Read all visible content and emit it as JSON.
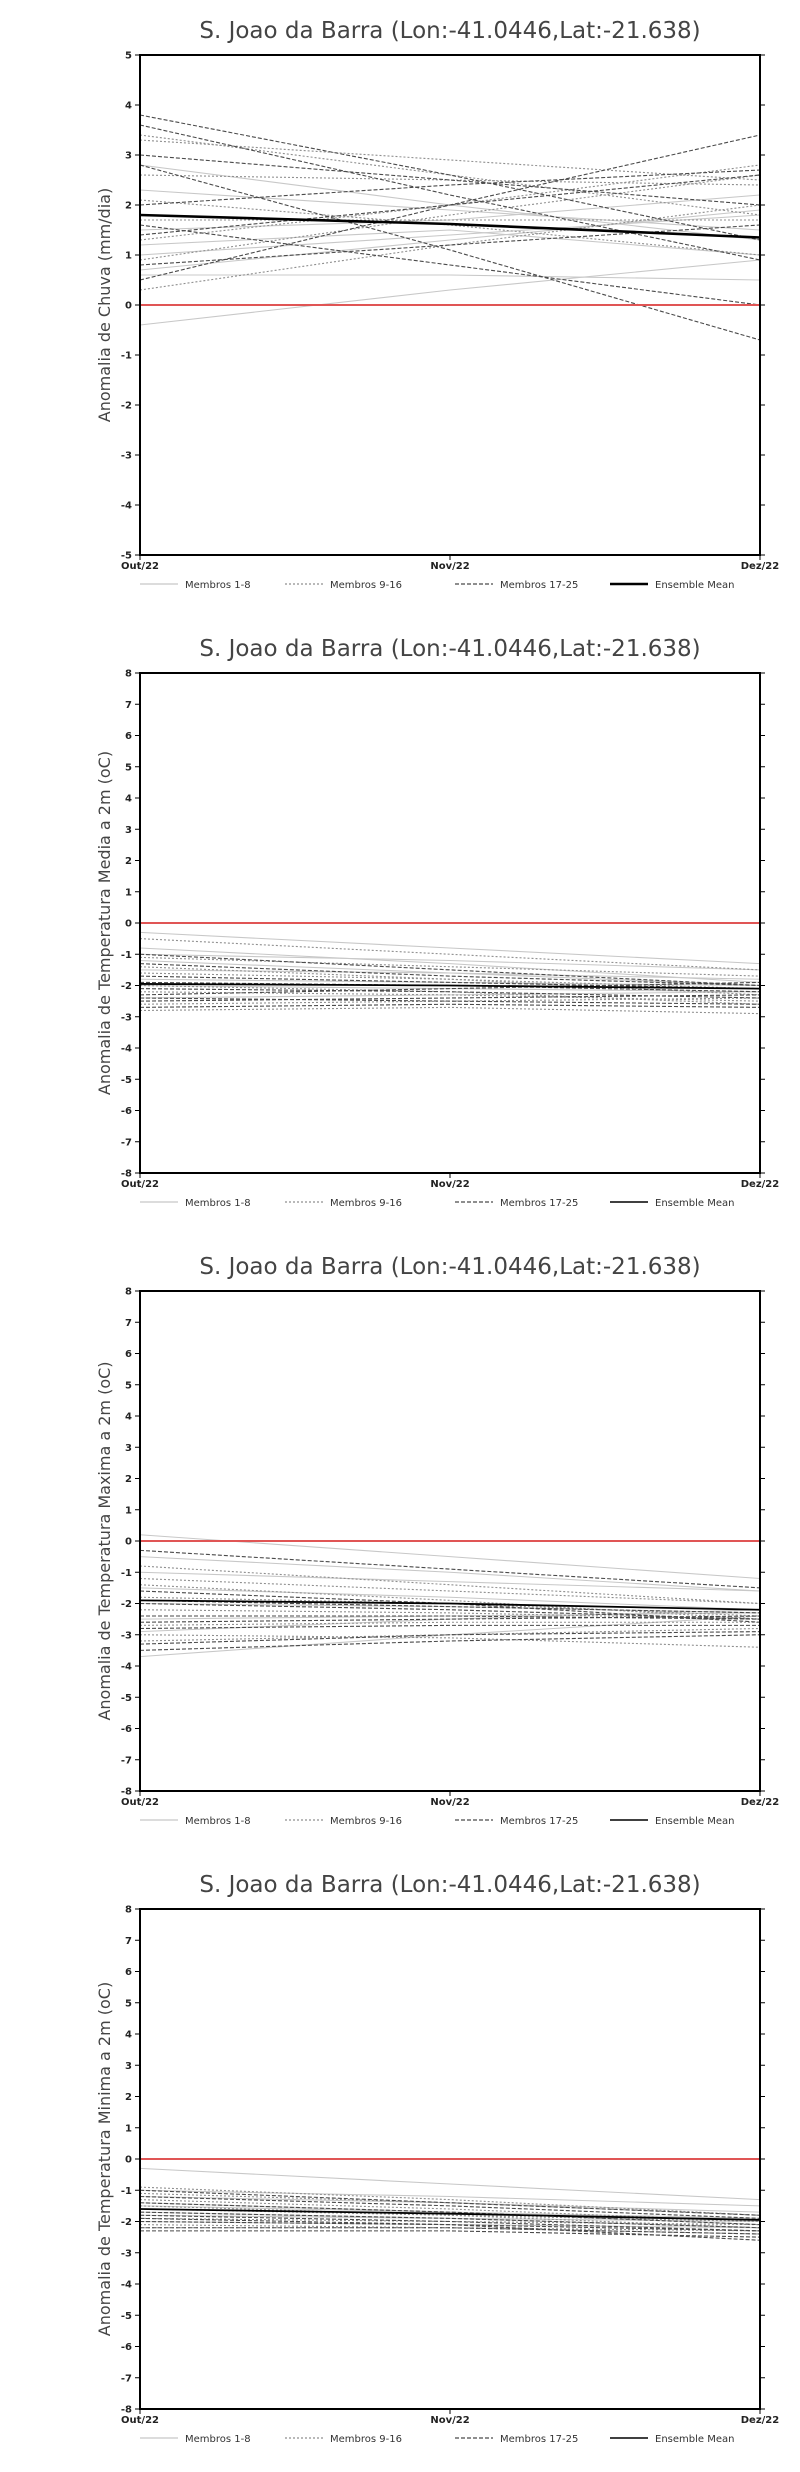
{
  "chart_data": [
    {
      "type": "line",
      "title": "S. Joao da Barra (Lon:-41.0446,Lat:-21.638)",
      "ylabel": "Anomalia de Chuva (mm/dia)",
      "x_ticks": [
        "Out/22",
        "Nov/22",
        "Dez/22"
      ],
      "ylim": [
        -5,
        5
      ],
      "y_ticks": [
        -5,
        -4,
        -3,
        -2,
        -1,
        0,
        1,
        2,
        3,
        4,
        5
      ],
      "reference_line": {
        "value": 0,
        "color": "#e05555"
      },
      "legend": [
        "Membros 1-8",
        "Membros 9-16",
        "Membros 17-25",
        "Ensemble Mean"
      ],
      "ensemble_mean": [
        1.8,
        1.62,
        1.35
      ],
      "members": [
        [
          1.5,
          1.7,
          2.2
        ],
        [
          2.3,
          1.9,
          1.5
        ],
        [
          1.0,
          1.4,
          1.8
        ],
        [
          0.7,
          1.3,
          1.9
        ],
        [
          -0.4,
          0.3,
          0.9
        ],
        [
          2.8,
          2.0,
          1.3
        ],
        [
          1.2,
          1.5,
          1.0
        ],
        [
          0.6,
          0.6,
          0.5
        ],
        [
          3.3,
          2.9,
          2.5
        ],
        [
          1.7,
          1.7,
          1.7
        ],
        [
          2.1,
          1.6,
          1.0
        ],
        [
          0.9,
          1.8,
          2.6
        ],
        [
          3.4,
          2.6,
          1.8
        ],
        [
          1.3,
          2.0,
          2.8
        ],
        [
          2.6,
          2.5,
          2.4
        ],
        [
          0.3,
          1.2,
          2.0
        ],
        [
          3.8,
          2.6,
          1.3
        ],
        [
          2.8,
          1.1,
          -0.7
        ],
        [
          1.6,
          0.8,
          0.0
        ],
        [
          3.0,
          2.5,
          2.0
        ],
        [
          0.8,
          1.2,
          1.6
        ],
        [
          2.0,
          2.4,
          2.7
        ],
        [
          1.4,
          2.0,
          2.6
        ],
        [
          0.5,
          2.0,
          3.4
        ],
        [
          3.6,
          2.2,
          0.9
        ]
      ]
    },
    {
      "type": "line",
      "title": "S. Joao da Barra (Lon:-41.0446,Lat:-21.638)",
      "ylabel": "Anomalia de Temperatura Media a 2m (oC)",
      "x_ticks": [
        "Out/22",
        "Nov/22",
        "Dez/22"
      ],
      "ylim": [
        -8,
        8
      ],
      "y_ticks": [
        -8,
        -7,
        -6,
        -5,
        -4,
        -3,
        -2,
        -1,
        0,
        1,
        2,
        3,
        4,
        5,
        6,
        7,
        8
      ],
      "reference_line": {
        "value": 0,
        "color": "#e05555"
      },
      "legend": [
        "Membros 1-8",
        "Membros 9-16",
        "Membros 17-25",
        "Ensemble Mean"
      ],
      "ensemble_mean": [
        -1.95,
        -2.0,
        -2.1
      ],
      "members": [
        [
          -0.3,
          -0.8,
          -1.3
        ],
        [
          -1.0,
          -1.2,
          -1.5
        ],
        [
          -1.5,
          -1.6,
          -1.8
        ],
        [
          -2.0,
          -2.1,
          -2.2
        ],
        [
          -2.4,
          -2.3,
          -2.2
        ],
        [
          -1.2,
          -1.6,
          -2.0
        ],
        [
          -0.8,
          -1.3,
          -1.9
        ],
        [
          -1.8,
          -1.9,
          -2.0
        ],
        [
          -2.2,
          -2.3,
          -2.5
        ],
        [
          -2.6,
          -2.5,
          -2.4
        ],
        [
          -1.1,
          -1.4,
          -1.7
        ],
        [
          -1.6,
          -1.8,
          -2.1
        ],
        [
          -2.8,
          -2.7,
          -2.9
        ],
        [
          -1.4,
          -1.8,
          -2.3
        ],
        [
          -2.0,
          -2.2,
          -2.6
        ],
        [
          -0.5,
          -1.0,
          -1.5
        ],
        [
          -2.3,
          -2.1,
          -1.9
        ],
        [
          -1.9,
          -2.0,
          -2.2
        ],
        [
          -2.5,
          -2.4,
          -2.3
        ],
        [
          -1.3,
          -1.7,
          -2.0
        ],
        [
          -2.1,
          -2.2,
          -2.4
        ],
        [
          -1.7,
          -1.9,
          -2.1
        ],
        [
          -2.7,
          -2.6,
          -2.7
        ],
        [
          -1.0,
          -1.5,
          -2.0
        ],
        [
          -2.4,
          -2.5,
          -2.6
        ]
      ]
    },
    {
      "type": "line",
      "title": "S. Joao da Barra (Lon:-41.0446,Lat:-21.638)",
      "ylabel": "Anomalia de Temperatura Maxima a 2m (oC)",
      "x_ticks": [
        "Out/22",
        "Nov/22",
        "Dez/22"
      ],
      "ylim": [
        -8,
        8
      ],
      "y_ticks": [
        -8,
        -7,
        -6,
        -5,
        -4,
        -3,
        -2,
        -1,
        0,
        1,
        2,
        3,
        4,
        5,
        6,
        7,
        8
      ],
      "reference_line": {
        "value": 0,
        "color": "#e05555"
      },
      "legend": [
        "Membros 1-8",
        "Membros 9-16",
        "Membros 17-25",
        "Ensemble Mean"
      ],
      "ensemble_mean": [
        -1.9,
        -2.0,
        -2.2
      ],
      "members": [
        [
          0.2,
          -0.5,
          -1.2
        ],
        [
          -1.0,
          -1.3,
          -1.6
        ],
        [
          -2.0,
          -2.1,
          -2.3
        ],
        [
          -2.9,
          -2.5,
          -2.2
        ],
        [
          -3.7,
          -3.0,
          -2.4
        ],
        [
          -1.5,
          -1.8,
          -2.2
        ],
        [
          -0.5,
          -1.0,
          -1.6
        ],
        [
          -2.5,
          -2.4,
          -2.3
        ],
        [
          -3.2,
          -3.0,
          -2.8
        ],
        [
          -1.8,
          -2.0,
          -2.4
        ],
        [
          -1.2,
          -1.6,
          -2.0
        ],
        [
          -2.7,
          -2.6,
          -2.6
        ],
        [
          -3.0,
          -3.1,
          -3.4
        ],
        [
          -0.8,
          -1.4,
          -2.0
        ],
        [
          -2.2,
          -2.3,
          -2.5
        ],
        [
          -1.4,
          -1.9,
          -2.5
        ],
        [
          -3.5,
          -3.2,
          -3.0
        ],
        [
          -2.0,
          -2.2,
          -2.5
        ],
        [
          -1.6,
          -2.0,
          -2.6
        ],
        [
          -2.6,
          -2.5,
          -2.4
        ],
        [
          -0.3,
          -0.9,
          -1.5
        ],
        [
          -2.8,
          -2.7,
          -2.7
        ],
        [
          -1.9,
          -2.1,
          -2.3
        ],
        [
          -3.3,
          -3.0,
          -2.9
        ],
        [
          -2.4,
          -2.4,
          -2.5
        ]
      ]
    },
    {
      "type": "line",
      "title": "S. Joao da Barra (Lon:-41.0446,Lat:-21.638)",
      "ylabel": "Anomalia de Temperatura Minima a 2m (oC)",
      "x_ticks": [
        "Out/22",
        "Nov/22",
        "Dez/22"
      ],
      "ylim": [
        -8,
        8
      ],
      "y_ticks": [
        -8,
        -7,
        -6,
        -5,
        -4,
        -3,
        -2,
        -1,
        0,
        1,
        2,
        3,
        4,
        5,
        6,
        7,
        8
      ],
      "reference_line": {
        "value": 0,
        "color": "#e05555"
      },
      "legend": [
        "Membros 1-8",
        "Membros 9-16",
        "Membros 17-25",
        "Ensemble Mean"
      ],
      "ensemble_mean": [
        -1.6,
        -1.75,
        -1.95
      ],
      "members": [
        [
          -0.3,
          -0.8,
          -1.3
        ],
        [
          -1.0,
          -1.2,
          -1.5
        ],
        [
          -1.2,
          -1.4,
          -1.7
        ],
        [
          -1.5,
          -1.7,
          -1.9
        ],
        [
          -1.8,
          -1.9,
          -2.0
        ],
        [
          -2.0,
          -2.1,
          -2.2
        ],
        [
          -1.4,
          -1.7,
          -2.1
        ],
        [
          -1.7,
          -1.9,
          -2.2
        ],
        [
          -2.2,
          -2.2,
          -2.3
        ],
        [
          -1.1,
          -1.4,
          -1.8
        ],
        [
          -1.6,
          -1.8,
          -2.0
        ],
        [
          -1.9,
          -2.0,
          -2.1
        ],
        [
          -2.1,
          -2.2,
          -2.4
        ],
        [
          -1.3,
          -1.6,
          -2.0
        ],
        [
          -1.5,
          -1.8,
          -2.2
        ],
        [
          -0.9,
          -1.3,
          -1.8
        ],
        [
          -2.0,
          -2.1,
          -2.3
        ],
        [
          -1.2,
          -1.5,
          -1.9
        ],
        [
          -1.8,
          -2.0,
          -2.3
        ],
        [
          -2.3,
          -2.3,
          -2.5
        ],
        [
          -1.4,
          -1.7,
          -2.1
        ],
        [
          -1.0,
          -1.4,
          -1.8
        ],
        [
          -1.7,
          -1.9,
          -2.2
        ],
        [
          -1.9,
          -2.1,
          -2.6
        ],
        [
          -2.2,
          -2.2,
          -2.4
        ]
      ]
    }
  ]
}
